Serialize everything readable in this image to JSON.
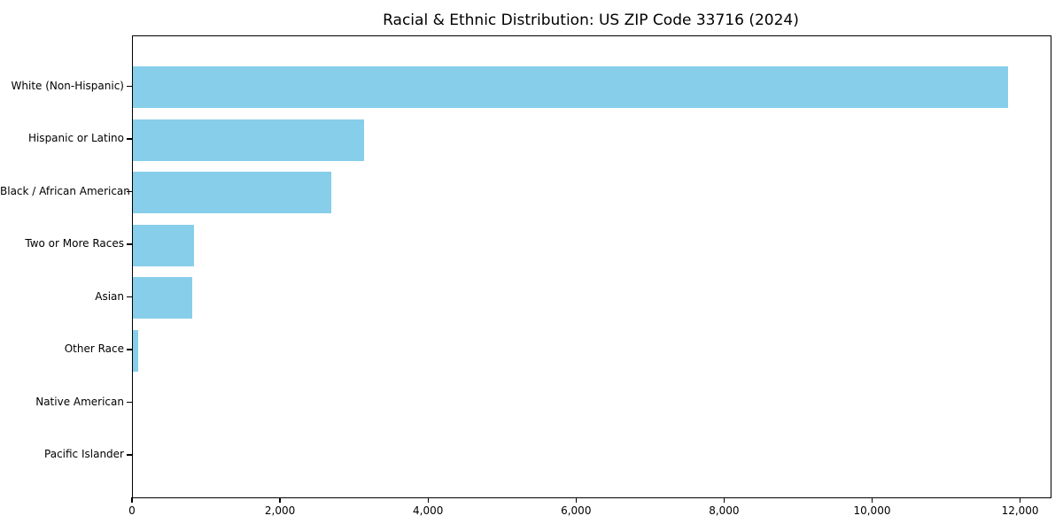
{
  "chart_data": {
    "type": "bar",
    "orientation": "horizontal",
    "title": "Racial & Ethnic Distribution: US ZIP Code 33716 (2024)",
    "categories": [
      "White (Non-Hispanic)",
      "Hispanic or Latino",
      "Black / African American",
      "Two or More Races",
      "Asian",
      "Other Race",
      "Native American",
      "Pacific Islander"
    ],
    "values": [
      11820,
      3120,
      2680,
      830,
      800,
      75,
      0,
      0
    ],
    "xlabel": "",
    "ylabel": "",
    "xlim": [
      0,
      12400
    ],
    "x_ticks": [
      0,
      2000,
      4000,
      6000,
      8000,
      10000,
      12000
    ],
    "x_tick_labels": [
      "0",
      "2,000",
      "4,000",
      "6,000",
      "8,000",
      "10,000",
      "12,000"
    ],
    "bar_color": "#87CEEB",
    "background_color": "#ffffff",
    "axis_color": "#000000",
    "grid": false,
    "legend": null
  }
}
